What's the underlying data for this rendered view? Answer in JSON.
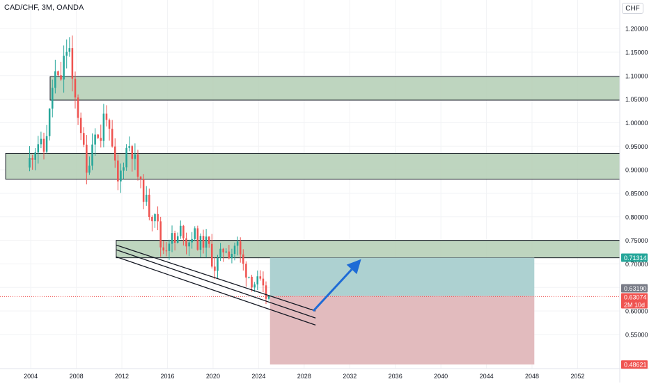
{
  "header": {
    "symbol": "CAD/CHF, 3M, OANDA",
    "currency_button": "CHF"
  },
  "colors": {
    "up": "#26a69a",
    "down": "#ef5350",
    "zone_fill": "#b7d0b8",
    "zone_border": "#131722",
    "profit_fill": "#a9cfcf",
    "loss_fill": "#e0b7bb",
    "arrow": "#1e6bd6",
    "current_price_bg": "#ef5350",
    "target_price_bg": "#26a69a",
    "grid": "#f2f3f5",
    "axis_text": "#131722"
  },
  "chart_data": {
    "type": "candlestick",
    "timeframe": "3M",
    "xlim": [
      2001.3,
      2055.7
    ],
    "ylim": [
      0.4775,
      1.2608
    ],
    "x_ticks": [
      2004,
      2008,
      2012,
      2016,
      2020,
      2024,
      2028,
      2032,
      2036,
      2040,
      2044,
      2048,
      2052
    ],
    "y_ticks": [
      "0.55000",
      "0.60000",
      "0.65000",
      "0.70000",
      "0.75000",
      "0.80000",
      "0.85000",
      "0.90000",
      "0.95000",
      "1.00000",
      "1.05000",
      "1.10000",
      "1.15000",
      "1.20000"
    ],
    "price_series": [
      [
        2003.9,
        0.905
      ],
      [
        2004.4,
        0.935
      ],
      [
        2004.9,
        0.96
      ],
      [
        2005.4,
        0.94
      ],
      [
        2005.9,
        1.02
      ],
      [
        2006.3,
        1.11
      ],
      [
        2006.8,
        1.08
      ],
      [
        2007.2,
        1.14
      ],
      [
        2007.6,
        1.17
      ],
      [
        2007.9,
        1.08
      ],
      [
        2008.3,
        1.03
      ],
      [
        2008.8,
        0.97
      ],
      [
        2009.1,
        0.88
      ],
      [
        2009.5,
        0.94
      ],
      [
        2009.9,
        0.99
      ],
      [
        2010.3,
        0.95
      ],
      [
        2010.8,
        1.04
      ],
      [
        2011.2,
        0.96
      ],
      [
        2011.5,
        0.93
      ],
      [
        2011.9,
        0.87
      ],
      [
        2012.3,
        0.91
      ],
      [
        2012.8,
        0.96
      ],
      [
        2013.3,
        0.93
      ],
      [
        2013.8,
        0.87
      ],
      [
        2014.3,
        0.84
      ],
      [
        2014.8,
        0.8
      ],
      [
        2015.2,
        0.82
      ],
      [
        2015.6,
        0.74
      ],
      [
        2016.0,
        0.73
      ],
      [
        2016.5,
        0.76
      ],
      [
        2017.0,
        0.74
      ],
      [
        2017.5,
        0.78
      ],
      [
        2018.0,
        0.74
      ],
      [
        2018.5,
        0.77
      ],
      [
        2019.0,
        0.74
      ],
      [
        2019.5,
        0.75
      ],
      [
        2020.0,
        0.73
      ],
      [
        2020.3,
        0.69
      ],
      [
        2020.8,
        0.71
      ],
      [
        2021.3,
        0.74
      ],
      [
        2021.8,
        0.72
      ],
      [
        2022.3,
        0.75
      ],
      [
        2022.8,
        0.7
      ],
      [
        2023.3,
        0.68
      ],
      [
        2023.8,
        0.66
      ],
      [
        2024.3,
        0.66
      ],
      [
        2024.6,
        0.64
      ],
      [
        2024.9,
        0.6307
      ]
    ],
    "zones": [
      {
        "x_start": 2005.7,
        "y_low": 1.048,
        "y_high": 1.098
      },
      {
        "x_start": 2001.8,
        "y_low": 0.88,
        "y_high": 0.935
      },
      {
        "x_start": 2011.5,
        "y_low": 0.713,
        "y_high": 0.75
      }
    ],
    "position": {
      "x_start": 2025.0,
      "x_end": 2048.2,
      "entry": 0.6319,
      "target": 0.71314,
      "stop": 0.48621
    },
    "channel_lines": [
      [
        [
          2011.5,
          0.74
        ],
        [
          2029.0,
          0.6
        ]
      ],
      [
        [
          2011.5,
          0.73
        ],
        [
          2029.0,
          0.585
        ]
      ],
      [
        [
          2011.5,
          0.715
        ],
        [
          2029.0,
          0.57
        ]
      ]
    ],
    "arrow": {
      "from": [
        2028.8,
        0.6
      ],
      "to": [
        2033.0,
        0.71
      ]
    },
    "price_labels": {
      "target": "0.71314",
      "entry": "0.63190",
      "current": "0.63074",
      "countdown": "2M 10d",
      "stop": "0.48621"
    }
  }
}
